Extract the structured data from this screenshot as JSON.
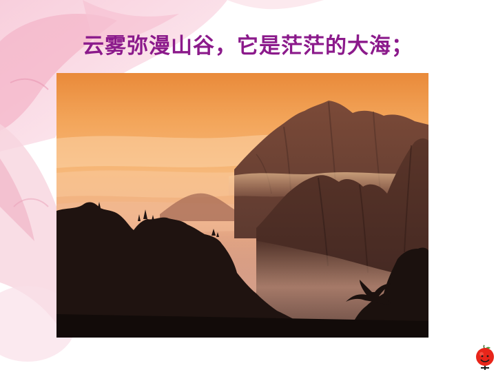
{
  "slide": {
    "title": "云雾弥漫山谷，它是茫茫的大海；",
    "title_color": "#8b1a8b",
    "photo_alt": "sea-of-clouds-mountain-photo",
    "nav_icon": "apple-face-icon"
  }
}
